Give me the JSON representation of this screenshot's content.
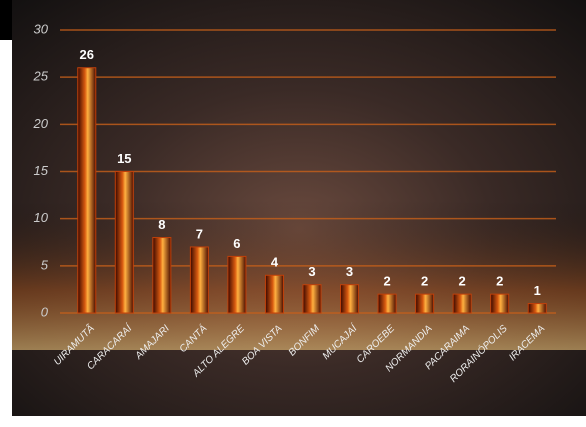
{
  "chart_data": {
    "type": "bar",
    "categories": [
      "UIRAMUTÃ",
      "CARACARAÍ",
      "AMAJARI",
      "CANTÁ",
      "ALTO ALEGRE",
      "BOA VISTA",
      "BONFIM",
      "MUCAJAÍ",
      "CAROEBE",
      "NORMANDIA",
      "PACARAIMA",
      "RORAINÓPOLIS",
      "IRACEMA"
    ],
    "values": [
      26,
      15,
      8,
      7,
      6,
      4,
      3,
      3,
      2,
      2,
      2,
      2,
      1
    ],
    "color": "#c0400a",
    "ylim": [
      0,
      30
    ],
    "yticks": [
      0,
      5,
      10,
      15,
      20,
      25,
      30
    ],
    "grid": true
  }
}
